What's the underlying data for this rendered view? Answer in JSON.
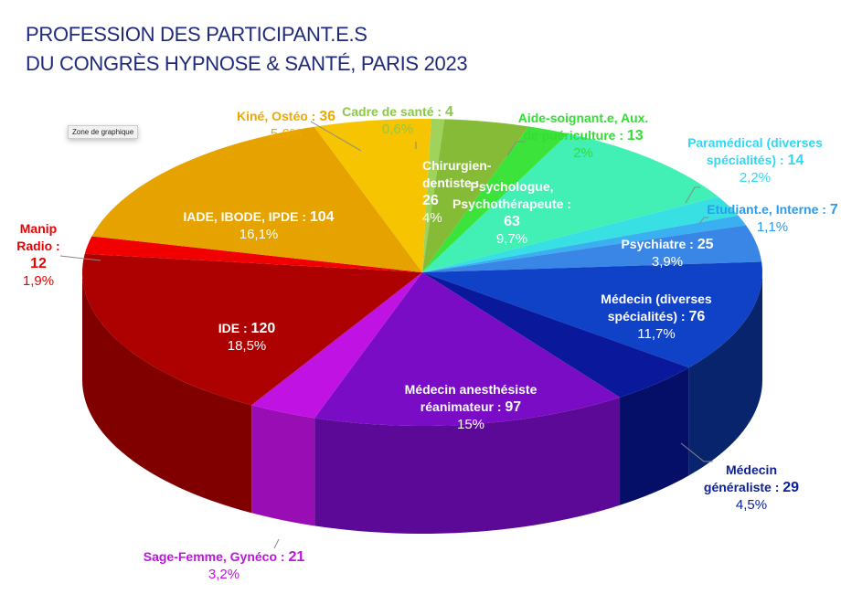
{
  "tooltip": "Zone de graphique",
  "chart_data": {
    "type": "pie",
    "style": "3d",
    "title": [
      "PROFESSION DES PARTICIPANT.E.S",
      "DU CONGRÈS HYPNOSE & SANTÉ, PARIS 2023"
    ],
    "slices": [
      {
        "label": "Cadre de santé :",
        "value": 4,
        "pct": "0,6%",
        "color": "#9fd35c"
      },
      {
        "label": "Chirurgien-dentiste :",
        "value": 26,
        "pct": "4%",
        "color": "#86bb38"
      },
      {
        "label": "Aide-soignant.e, Aux. de puériculture :",
        "value": 13,
        "pct": "2%",
        "color": "#3be33b"
      },
      {
        "label": "Psychologue, Psychothérapeute :",
        "value": 63,
        "pct": "9,7%",
        "color": "#42efb4"
      },
      {
        "label": "Paramédical (diverses spécialités) :",
        "value": 14,
        "pct": "2,2%",
        "color": "#38e0e4"
      },
      {
        "label": "Etudiant.e, Interne :",
        "value": 7,
        "pct": "1,1%",
        "color": "#3ab0f0"
      },
      {
        "label": "Psychiatre :",
        "value": 25,
        "pct": "3,9%",
        "color": "#3a86e6"
      },
      {
        "label": "Médecin (diverses spécialités) :",
        "value": 76,
        "pct": "11,7%",
        "color": "#0f42c6"
      },
      {
        "label": "Médecin généraliste :",
        "value": 29,
        "pct": "4,5%",
        "color": "#0a189c"
      },
      {
        "label": "Médecin anesthésiste réanimateur :",
        "value": 97,
        "pct": "15%",
        "color": "#7a0cc6"
      },
      {
        "label": "Sage-Femme, Gynéco :",
        "value": 21,
        "pct": "3,2%",
        "color": "#c012e2"
      },
      {
        "label": "IDE :",
        "value": 120,
        "pct": "18,5%",
        "color": "#ad0000"
      },
      {
        "label": "Manip Radio :",
        "value": 12,
        "pct": "1,9%",
        "color": "#f00000"
      },
      {
        "label": "IADE, IBODE, IPDE :",
        "value": 104,
        "pct": "16,1%",
        "color": "#e6a300"
      },
      {
        "label": "Kiné, Ostéo :",
        "value": 36,
        "pct": "5,6%",
        "color": "#f6c400"
      }
    ]
  }
}
